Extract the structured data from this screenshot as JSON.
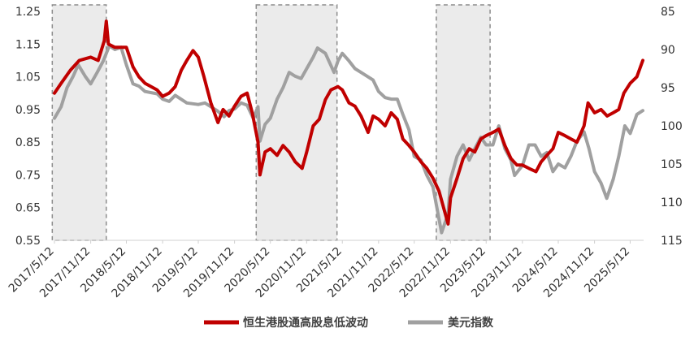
{
  "chart_data": {
    "type": "line",
    "title": "",
    "xlabel": "",
    "ylabel": "",
    "x_ticks": [
      "2017/5/12",
      "2017/11/12",
      "2018/5/12",
      "2018/11/12",
      "2019/5/12",
      "2019/11/12",
      "2020/5/12",
      "2020/11/12",
      "2021/5/12",
      "2021/11/12",
      "2022/5/12",
      "2022/11/12",
      "2023/5/12",
      "2023/11/12",
      "2024/5/12",
      "2024/11/12",
      "2025/5/12"
    ],
    "y_left": {
      "ticks": [
        "1.25",
        "1.15",
        "1.05",
        "0.95",
        "0.85",
        "0.75",
        "0.65",
        "0.55"
      ],
      "ylim": [
        0.55,
        1.25
      ]
    },
    "y_right": {
      "ticks": [
        "85",
        "90",
        "95",
        "100",
        "105",
        "110",
        "115"
      ],
      "ylim": [
        85,
        115
      ],
      "inverted": true
    },
    "shaded_periods": [
      {
        "start": "2017-05-01",
        "end": "2018-01-30"
      },
      {
        "start": "2020-03-01",
        "end": "2021-04-15"
      },
      {
        "start": "2022-09-01",
        "end": "2023-06-01"
      }
    ],
    "grid": false,
    "legend_position": "bottom",
    "series": [
      {
        "name": "恒生港股通高股息低波动",
        "axis": "left",
        "color": "#C00000",
        "points": [
          [
            "2017-05-12",
            1.0
          ],
          [
            "2017-06-15",
            1.03
          ],
          [
            "2017-08-01",
            1.07
          ],
          [
            "2017-09-15",
            1.1
          ],
          [
            "2017-11-12",
            1.11
          ],
          [
            "2017-12-20",
            1.1
          ],
          [
            "2018-01-20",
            1.16
          ],
          [
            "2018-01-30",
            1.22
          ],
          [
            "2018-02-10",
            1.15
          ],
          [
            "2018-03-15",
            1.14
          ],
          [
            "2018-05-12",
            1.14
          ],
          [
            "2018-06-15",
            1.08
          ],
          [
            "2018-07-15",
            1.05
          ],
          [
            "2018-08-15",
            1.03
          ],
          [
            "2018-10-15",
            1.01
          ],
          [
            "2018-11-12",
            0.99
          ],
          [
            "2018-12-15",
            1.0
          ],
          [
            "2019-01-15",
            1.02
          ],
          [
            "2019-02-15",
            1.07
          ],
          [
            "2019-03-15",
            1.1
          ],
          [
            "2019-04-15",
            1.13
          ],
          [
            "2019-05-12",
            1.11
          ],
          [
            "2019-06-10",
            1.05
          ],
          [
            "2019-07-15",
            0.97
          ],
          [
            "2019-08-20",
            0.91
          ],
          [
            "2019-09-15",
            0.95
          ],
          [
            "2019-10-15",
            0.93
          ],
          [
            "2019-11-12",
            0.96
          ],
          [
            "2019-12-15",
            0.99
          ],
          [
            "2020-01-15",
            1.0
          ],
          [
            "2020-02-10",
            0.94
          ],
          [
            "2020-03-10",
            0.85
          ],
          [
            "2020-03-20",
            0.75
          ],
          [
            "2020-04-15",
            0.82
          ],
          [
            "2020-05-12",
            0.83
          ],
          [
            "2020-06-15",
            0.81
          ],
          [
            "2020-07-15",
            0.84
          ],
          [
            "2020-08-15",
            0.82
          ],
          [
            "2020-09-15",
            0.79
          ],
          [
            "2020-10-20",
            0.77
          ],
          [
            "2020-11-12",
            0.82
          ],
          [
            "2020-12-15",
            0.9
          ],
          [
            "2021-01-15",
            0.92
          ],
          [
            "2021-02-15",
            0.98
          ],
          [
            "2021-03-15",
            1.01
          ],
          [
            "2021-04-20",
            1.02
          ],
          [
            "2021-05-12",
            1.01
          ],
          [
            "2021-06-15",
            0.97
          ],
          [
            "2021-07-15",
            0.96
          ],
          [
            "2021-08-15",
            0.93
          ],
          [
            "2021-09-20",
            0.88
          ],
          [
            "2021-10-15",
            0.93
          ],
          [
            "2021-11-12",
            0.92
          ],
          [
            "2021-12-15",
            0.9
          ],
          [
            "2022-01-15",
            0.94
          ],
          [
            "2022-02-15",
            0.92
          ],
          [
            "2022-03-15",
            0.86
          ],
          [
            "2022-04-15",
            0.84
          ],
          [
            "2022-05-12",
            0.82
          ],
          [
            "2022-06-15",
            0.79
          ],
          [
            "2022-07-15",
            0.77
          ],
          [
            "2022-08-15",
            0.74
          ],
          [
            "2022-09-15",
            0.7
          ],
          [
            "2022-10-31",
            0.6
          ],
          [
            "2022-11-12",
            0.68
          ],
          [
            "2022-12-15",
            0.74
          ],
          [
            "2023-01-15",
            0.8
          ],
          [
            "2023-02-15",
            0.83
          ],
          [
            "2023-03-15",
            0.82
          ],
          [
            "2023-04-15",
            0.86
          ],
          [
            "2023-05-12",
            0.87
          ],
          [
            "2023-06-15",
            0.88
          ],
          [
            "2023-07-15",
            0.89
          ],
          [
            "2023-08-15",
            0.84
          ],
          [
            "2023-09-15",
            0.8
          ],
          [
            "2023-10-15",
            0.78
          ],
          [
            "2023-11-12",
            0.78
          ],
          [
            "2023-12-15",
            0.77
          ],
          [
            "2024-01-20",
            0.76
          ],
          [
            "2024-02-15",
            0.79
          ],
          [
            "2024-03-15",
            0.81
          ],
          [
            "2024-04-15",
            0.83
          ],
          [
            "2024-05-12",
            0.88
          ],
          [
            "2024-06-15",
            0.87
          ],
          [
            "2024-07-15",
            0.86
          ],
          [
            "2024-08-15",
            0.85
          ],
          [
            "2024-09-20",
            0.9
          ],
          [
            "2024-10-10",
            0.97
          ],
          [
            "2024-11-12",
            0.94
          ],
          [
            "2024-12-15",
            0.95
          ],
          [
            "2025-01-15",
            0.93
          ],
          [
            "2025-02-15",
            0.94
          ],
          [
            "2025-03-15",
            0.95
          ],
          [
            "2025-04-10",
            1.0
          ],
          [
            "2025-05-12",
            1.03
          ],
          [
            "2025-06-15",
            1.05
          ],
          [
            "2025-07-15",
            1.1
          ]
        ]
      },
      {
        "name": "美元指数",
        "axis": "right",
        "color": "#A0A0A0",
        "points": [
          [
            "2017-05-12",
            99.0
          ],
          [
            "2017-06-15",
            97.5
          ],
          [
            "2017-07-15",
            95.0
          ],
          [
            "2017-08-15",
            93.5
          ],
          [
            "2017-09-10",
            92.0
          ],
          [
            "2017-10-15",
            93.5
          ],
          [
            "2017-11-12",
            94.5
          ],
          [
            "2017-12-15",
            93.0
          ],
          [
            "2018-01-15",
            91.5
          ],
          [
            "2018-02-15",
            89.5
          ],
          [
            "2018-03-15",
            90.0
          ],
          [
            "2018-04-15",
            89.7
          ],
          [
            "2018-05-12",
            92.0
          ],
          [
            "2018-06-15",
            94.5
          ],
          [
            "2018-07-15",
            94.8
          ],
          [
            "2018-08-15",
            95.5
          ],
          [
            "2018-10-15",
            95.8
          ],
          [
            "2018-11-12",
            96.5
          ],
          [
            "2018-12-15",
            96.8
          ],
          [
            "2019-01-15",
            96.0
          ],
          [
            "2019-03-15",
            97.0
          ],
          [
            "2019-05-12",
            97.2
          ],
          [
            "2019-06-15",
            97.0
          ],
          [
            "2019-07-15",
            97.5
          ],
          [
            "2019-08-15",
            98.0
          ],
          [
            "2019-09-20",
            98.8
          ],
          [
            "2019-10-15",
            98.0
          ],
          [
            "2019-11-12",
            97.8
          ],
          [
            "2019-12-15",
            97.0
          ],
          [
            "2020-01-15",
            97.3
          ],
          [
            "2020-02-15",
            99.0
          ],
          [
            "2020-03-10",
            97.5
          ],
          [
            "2020-03-20",
            102.0
          ],
          [
            "2020-04-15",
            99.8
          ],
          [
            "2020-05-12",
            99.0
          ],
          [
            "2020-06-15",
            96.5
          ],
          [
            "2020-07-15",
            95.0
          ],
          [
            "2020-08-15",
            93.0
          ],
          [
            "2020-09-15",
            93.5
          ],
          [
            "2020-10-15",
            93.8
          ],
          [
            "2020-11-12",
            92.5
          ],
          [
            "2020-12-15",
            91.0
          ],
          [
            "2021-01-06",
            89.8
          ],
          [
            "2021-02-15",
            90.5
          ],
          [
            "2021-03-31",
            93.0
          ],
          [
            "2021-04-20",
            91.5
          ],
          [
            "2021-05-12",
            90.5
          ],
          [
            "2021-06-15",
            91.5
          ],
          [
            "2021-07-15",
            92.5
          ],
          [
            "2021-08-15",
            93.0
          ],
          [
            "2021-09-15",
            93.5
          ],
          [
            "2021-10-15",
            94.0
          ],
          [
            "2021-11-12",
            95.5
          ],
          [
            "2021-12-15",
            96.3
          ],
          [
            "2022-01-15",
            96.5
          ],
          [
            "2022-02-15",
            96.5
          ],
          [
            "2022-03-15",
            98.5
          ],
          [
            "2022-04-15",
            100.5
          ],
          [
            "2022-05-12",
            104.0
          ],
          [
            "2022-06-15",
            104.5
          ],
          [
            "2022-07-15",
            106.5
          ],
          [
            "2022-08-15",
            108.0
          ],
          [
            "2022-09-28",
            114.0
          ],
          [
            "2022-10-31",
            111.5
          ],
          [
            "2022-11-12",
            107.0
          ],
          [
            "2022-12-15",
            104.0
          ],
          [
            "2023-01-15",
            102.5
          ],
          [
            "2023-02-15",
            104.5
          ],
          [
            "2023-03-15",
            103.0
          ],
          [
            "2023-04-15",
            101.5
          ],
          [
            "2023-05-12",
            102.5
          ],
          [
            "2023-06-15",
            102.5
          ],
          [
            "2023-07-15",
            100.0
          ],
          [
            "2023-08-15",
            103.0
          ],
          [
            "2023-09-15",
            104.5
          ],
          [
            "2023-10-03",
            106.5
          ],
          [
            "2023-11-12",
            105.2
          ],
          [
            "2023-12-15",
            102.5
          ],
          [
            "2024-01-15",
            102.5
          ],
          [
            "2024-02-15",
            104.0
          ],
          [
            "2024-03-15",
            103.5
          ],
          [
            "2024-04-15",
            106.0
          ],
          [
            "2024-05-12",
            105.0
          ],
          [
            "2024-06-15",
            105.5
          ],
          [
            "2024-07-15",
            104.0
          ],
          [
            "2024-08-15",
            102.0
          ],
          [
            "2024-09-20",
            100.8
          ],
          [
            "2024-10-15",
            103.0
          ],
          [
            "2024-11-12",
            106.0
          ],
          [
            "2024-12-15",
            107.5
          ],
          [
            "2025-01-13",
            109.5
          ],
          [
            "2025-02-15",
            107.0
          ],
          [
            "2025-03-15",
            104.0
          ],
          [
            "2025-04-15",
            100.0
          ],
          [
            "2025-05-12",
            101.0
          ],
          [
            "2025-06-15",
            98.5
          ],
          [
            "2025-07-15",
            98.0
          ]
        ]
      }
    ]
  }
}
